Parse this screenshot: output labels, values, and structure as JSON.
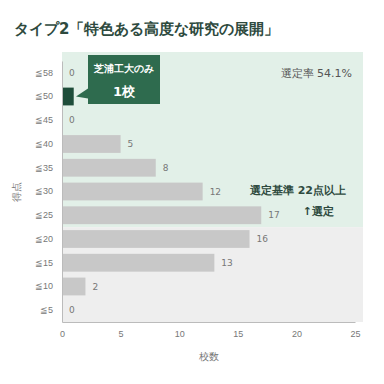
{
  "chart_data": {
    "type": "bar",
    "orientation": "horizontal",
    "title": "タイプ2「特色ある高度な研究の展開」",
    "x_label": "校数",
    "y_label": "得点",
    "categories": [
      "≦58",
      "≦50",
      "≦45",
      "≦40",
      "≦35",
      "≦30",
      "≦25",
      "≦20",
      "≦15",
      "≦10",
      "≦5"
    ],
    "values": [
      0,
      1,
      0,
      5,
      8,
      12,
      17,
      16,
      13,
      2,
      0
    ],
    "value_labels": [
      "0",
      null,
      "0",
      "5",
      "8",
      "12",
      "17",
      "16",
      "13",
      "2",
      "0"
    ],
    "colors": [
      "#c8c8c8",
      "#1e4d3a",
      "#c8c8c8",
      "#c8c8c8",
      "#c8c8c8",
      "#c8c8c8",
      "#c8c8c8",
      "#c8c8c8",
      "#c8c8c8",
      "#c8c8c8",
      "#c8c8c8"
    ],
    "data_labels": true,
    "xlim": [
      0,
      25
    ],
    "xticks": [
      0,
      5,
      10,
      15,
      20,
      25
    ],
    "annotations": [
      "選定率 54.1%",
      "芝浦工大のみ",
      "1校",
      "選定基準 22点以上",
      "↑選定"
    ]
  }
}
